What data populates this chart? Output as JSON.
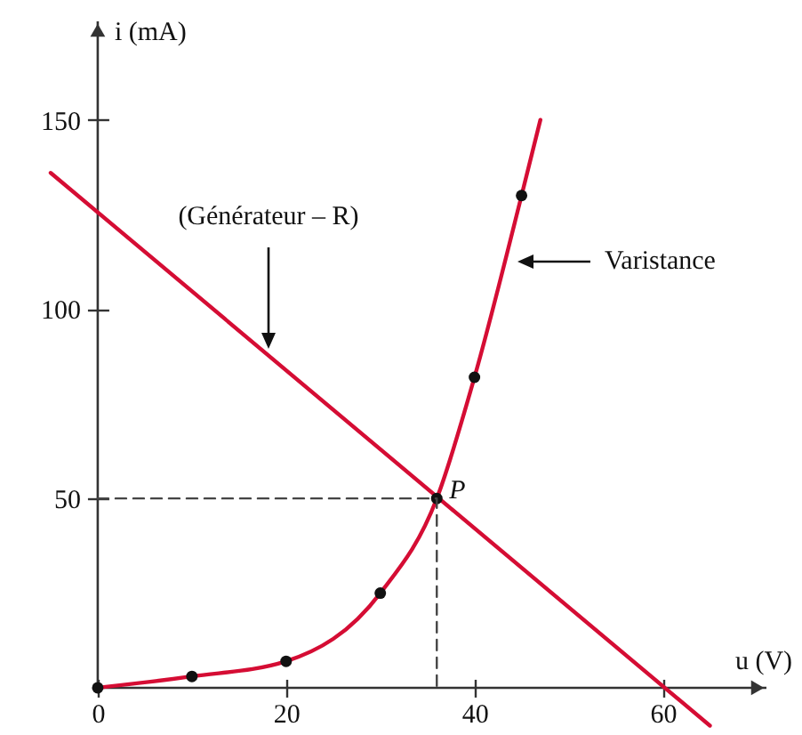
{
  "chart_data": {
    "type": "line",
    "xlabel": "u (V)",
    "ylabel": "i (mA)",
    "xlim": [
      -10,
      71
    ],
    "ylim": [
      -12,
      176
    ],
    "xticks": [
      0,
      20,
      40,
      60
    ],
    "yticks": [
      50,
      100,
      150
    ],
    "grid": false,
    "series": [
      {
        "x": [
          -5,
          65
        ],
        "values": [
          136,
          -10
        ],
        "color": "#d50d34"
      },
      {
        "x": [
          0,
          10,
          20,
          30,
          36,
          40,
          45,
          47
        ],
        "values": [
          0,
          3,
          7,
          25,
          50,
          82,
          130,
          150
        ],
        "color": "#d50d34"
      },
      {
        "type": "scatter",
        "x": [
          0,
          10,
          20,
          30,
          36,
          40,
          45
        ],
        "values": [
          0,
          3,
          7,
          25,
          50,
          82,
          130
        ],
        "color": "#111111",
        "marker": "circle"
      },
      {
        "x": [
          0,
          36,
          36
        ],
        "values": [
          50,
          50,
          0
        ],
        "color": "#444444",
        "line_style": "dashed"
      }
    ],
    "annotations": [
      "(Générateur – R)",
      "Varistance",
      {
        "text": "P",
        "x": 36,
        "y": 50
      }
    ]
  }
}
